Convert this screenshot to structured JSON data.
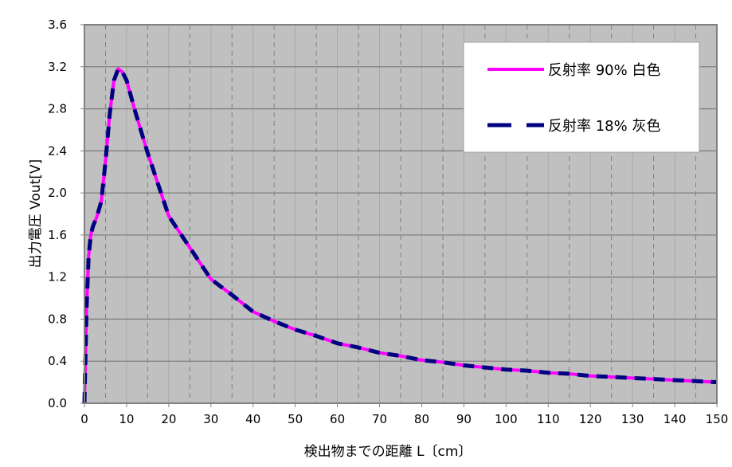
{
  "chart_data": {
    "type": "line",
    "title": "",
    "xlabel": "検出物までの距離 L〔cm〕",
    "ylabel": "出力電圧 Vout[V]",
    "xlim": [
      0,
      150
    ],
    "ylim": [
      0,
      3.6
    ],
    "x_ticks": [
      "0",
      "10",
      "20",
      "30",
      "40",
      "50",
      "60",
      "70",
      "80",
      "90",
      "100",
      "110",
      "120",
      "130",
      "140",
      "150"
    ],
    "y_ticks": [
      "0.0",
      "0.4",
      "0.8",
      "1.2",
      "1.6",
      "2.0",
      "2.4",
      "2.8",
      "3.2",
      "3.6"
    ],
    "grid": true,
    "background_color": "#C0C0C0",
    "legend_position": "top-right",
    "x": [
      0,
      0.5,
      1,
      1.5,
      2,
      3,
      4,
      5,
      6,
      7,
      8,
      9,
      10,
      12,
      15,
      20,
      25,
      30,
      35,
      40,
      45,
      50,
      55,
      60,
      65,
      70,
      75,
      80,
      85,
      90,
      95,
      100,
      105,
      110,
      115,
      120,
      125,
      130,
      135,
      140,
      145,
      150
    ],
    "series": [
      {
        "name": "反射率 90% 白色",
        "color": "#FF00FF",
        "style": "solid",
        "values": [
          0,
          0.9,
          1.4,
          1.6,
          1.68,
          1.78,
          1.92,
          2.3,
          2.75,
          3.07,
          3.18,
          3.15,
          3.07,
          2.78,
          2.38,
          1.78,
          1.48,
          1.18,
          1.03,
          0.87,
          0.78,
          0.7,
          0.64,
          0.57,
          0.53,
          0.48,
          0.45,
          0.41,
          0.39,
          0.36,
          0.34,
          0.32,
          0.31,
          0.29,
          0.28,
          0.26,
          0.25,
          0.24,
          0.23,
          0.22,
          0.21,
          0.2
        ]
      },
      {
        "name": "反射率 18% 灰色",
        "color": "#000080",
        "style": "dashed",
        "values": [
          0,
          0.9,
          1.4,
          1.6,
          1.68,
          1.78,
          1.92,
          2.3,
          2.75,
          3.07,
          3.18,
          3.15,
          3.07,
          2.78,
          2.38,
          1.78,
          1.48,
          1.18,
          1.03,
          0.87,
          0.78,
          0.7,
          0.64,
          0.57,
          0.53,
          0.48,
          0.45,
          0.41,
          0.39,
          0.36,
          0.34,
          0.32,
          0.31,
          0.29,
          0.28,
          0.26,
          0.25,
          0.24,
          0.23,
          0.22,
          0.21,
          0.2
        ]
      }
    ]
  }
}
